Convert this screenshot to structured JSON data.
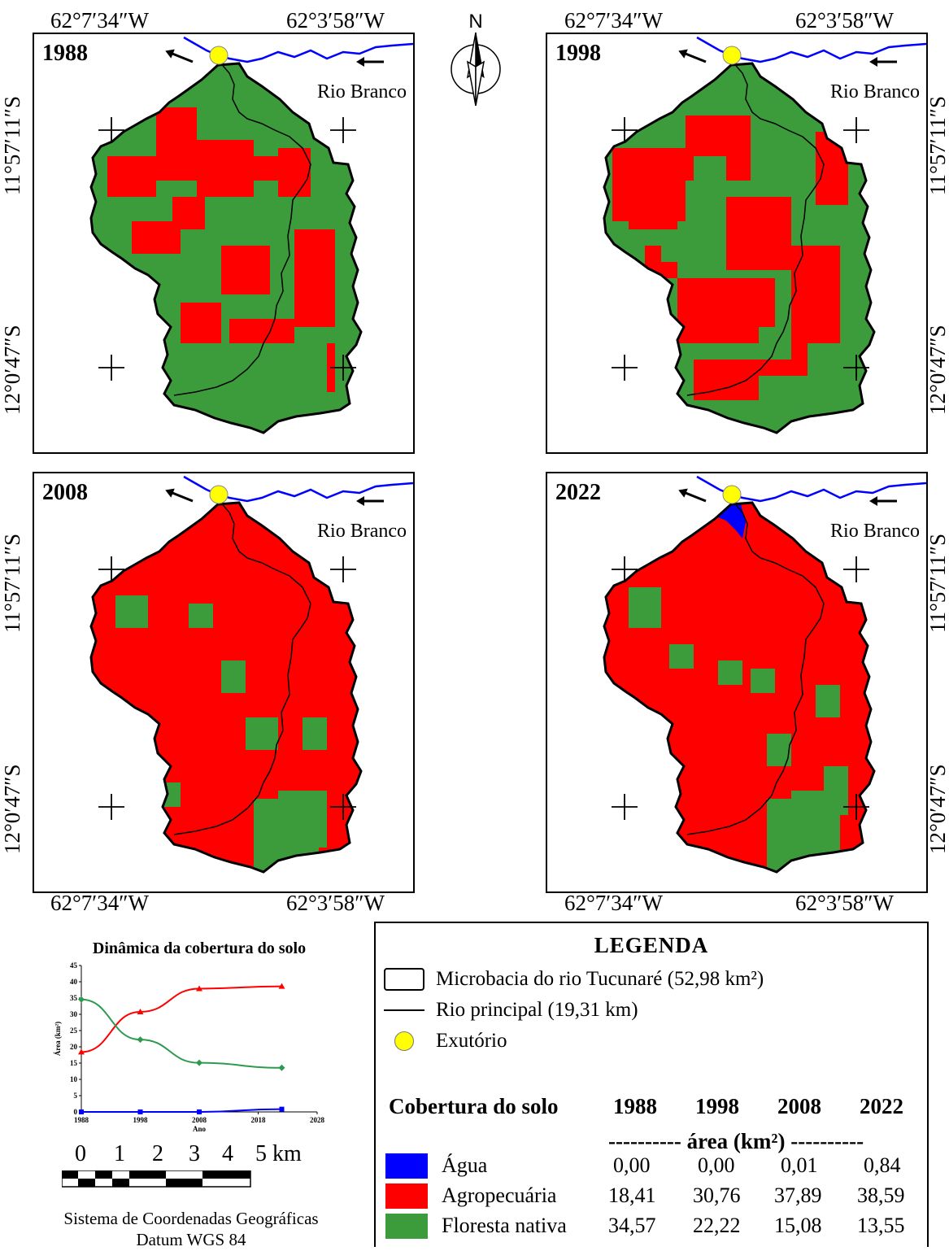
{
  "coords": {
    "lon_left": "62°7′34″W",
    "lon_right": "62°3′58″W",
    "lat_top": "11°57′11″S",
    "lat_bottom": "12°0′47″S"
  },
  "north_label": "N",
  "river_label": "Rio Branco",
  "panels": [
    {
      "year": "1988",
      "landuse": "agro-dominant-low"
    },
    {
      "year": "1998",
      "landuse": "mixed"
    },
    {
      "year": "2008",
      "landuse": "agro-high"
    },
    {
      "year": "2022",
      "landuse": "agro-high-water"
    }
  ],
  "colors": {
    "agua": "#0000ff",
    "agropecuaria": "#ff0000",
    "floresta": "#3c9c3c",
    "exutorio": "#ffff00"
  },
  "chart_data": {
    "type": "line",
    "title": "Dinâmica da cobertura do solo",
    "xlabel": "Ano",
    "ylabel": "Área (km²)",
    "x": [
      1988,
      1998,
      2008,
      2022
    ],
    "xticks": [
      1988,
      1998,
      2008,
      2018,
      2028
    ],
    "yticks": [
      0,
      5,
      10,
      15,
      20,
      25,
      30,
      35,
      40,
      45
    ],
    "xlim": [
      1988,
      2028
    ],
    "ylim": [
      0,
      45
    ],
    "series": [
      {
        "name": "Água",
        "values": [
          0.0,
          0.0,
          0.01,
          0.84
        ],
        "color": "#0000ff"
      },
      {
        "name": "Agropecuária",
        "values": [
          18.41,
          30.76,
          37.89,
          38.59
        ],
        "color": "#ff0000"
      },
      {
        "name": "Floresta nativa",
        "values": [
          34.57,
          22.22,
          15.08,
          13.55
        ],
        "color": "#2e9a4e"
      }
    ]
  },
  "scale": {
    "labels": [
      "0",
      "1",
      "2",
      "3",
      "4",
      "5 km"
    ]
  },
  "crs": {
    "line1": "Sistema de Coordenadas Geográficas",
    "line2": "Datum WGS 84"
  },
  "legend": {
    "title": "LEGENDA",
    "microbacia": "Microbacia do rio Tucunaré (52,98 km²)",
    "rio_principal": "Rio principal (19,31 km)",
    "exutorio": "Exutório",
    "table_header": "Cobertura do solo",
    "years": [
      "1988",
      "1998",
      "2008",
      "2022"
    ],
    "unit_row": "---------- área (km²) ----------",
    "rows": [
      {
        "label": "Água",
        "values": [
          "0,00",
          "0,00",
          "0,01",
          "0,84"
        ],
        "color": "#0000ff"
      },
      {
        "label": "Agropecuária",
        "values": [
          "18,41",
          "30,76",
          "37,89",
          "38,59"
        ],
        "color": "#ff0000"
      },
      {
        "label": "Floresta nativa",
        "values": [
          "34,57",
          "22,22",
          "15,08",
          "13,55"
        ],
        "color": "#3c9c3c"
      }
    ]
  }
}
